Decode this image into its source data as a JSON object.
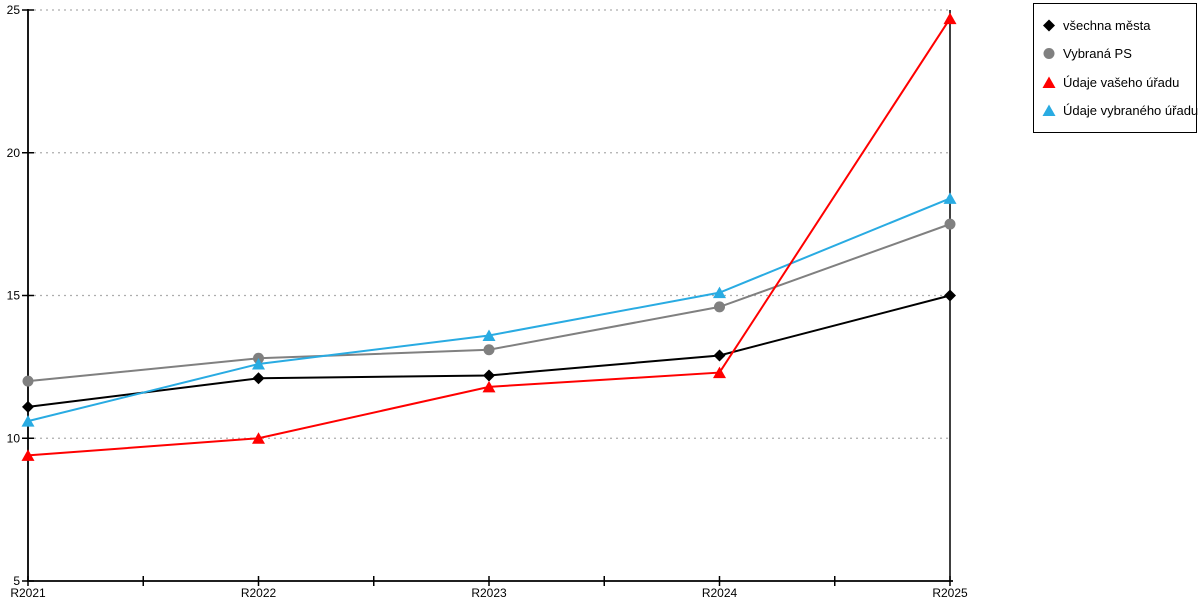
{
  "chart_data": {
    "type": "line",
    "title": "",
    "xlabel": "",
    "ylabel": "",
    "categories": [
      "R2021",
      "R2022",
      "R2023",
      "R2024",
      "R2025"
    ],
    "series": [
      {
        "name": "všechna města",
        "marker": "diamond",
        "color": "#000000",
        "values": [
          11.1,
          12.1,
          12.2,
          12.9,
          15.0
        ]
      },
      {
        "name": "Vybraná PS",
        "marker": "circle",
        "color": "#808080",
        "values": [
          12.0,
          12.8,
          13.1,
          14.6,
          17.5
        ]
      },
      {
        "name": "Údaje vašeho úřadu",
        "marker": "triangle",
        "color": "#FF0000",
        "values": [
          9.4,
          10.0,
          11.8,
          12.3,
          24.7
        ]
      },
      {
        "name": "Údaje vybraného úřadu",
        "marker": "triangle",
        "color": "#29ABE2",
        "values": [
          10.6,
          12.6,
          13.6,
          15.1,
          18.4
        ]
      }
    ],
    "ylim": [
      5,
      25
    ],
    "yticks": [
      5,
      10,
      15,
      20,
      25
    ],
    "grid": "horizontal-dotted",
    "grid_color": "#ADADAD",
    "axis_color": "#000000",
    "legend_position": "top-right"
  }
}
